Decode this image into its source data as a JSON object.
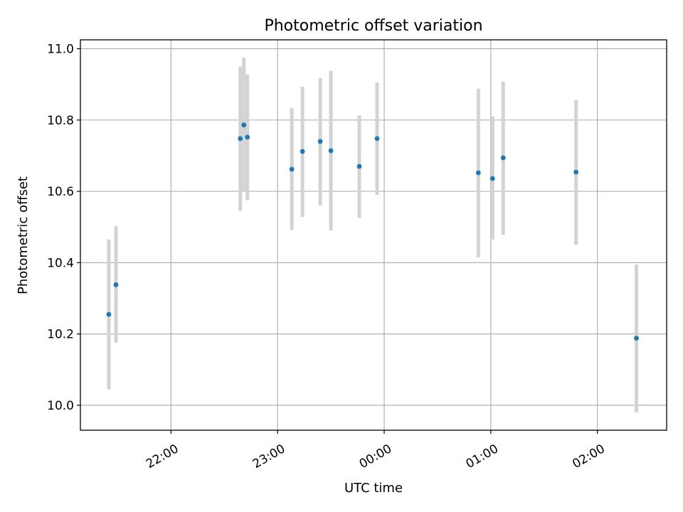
{
  "chart_data": {
    "type": "scatter",
    "title": "Photometric offset variation",
    "xlabel": "UTC time",
    "ylabel": "Photometric offset",
    "x_unit": "UTC time (hh:mm), times after midnight belong to the next day",
    "xlim": [
      "21:09",
      "02:39"
    ],
    "ylim": [
      9.93,
      11.025
    ],
    "x_ticks": [
      "22:00",
      "23:00",
      "00:00",
      "01:00",
      "02:00"
    ],
    "y_ticks": [
      "10.0",
      "10.2",
      "10.4",
      "10.6",
      "10.8",
      "11.0"
    ],
    "grid": true,
    "colors": {
      "point": "#1f77b4",
      "errorbar": "#d3d3d3"
    },
    "series": [
      {
        "points": [
          {
            "x": "21:25",
            "y": 10.255,
            "ylow": 10.045,
            "yhigh": 10.465
          },
          {
            "x": "21:29",
            "y": 10.338,
            "ylow": 10.175,
            "yhigh": 10.502
          },
          {
            "x": "22:39",
            "y": 10.748,
            "ylow": 10.545,
            "yhigh": 10.95
          },
          {
            "x": "22:41",
            "y": 10.786,
            "ylow": 10.598,
            "yhigh": 10.975
          },
          {
            "x": "22:43",
            "y": 10.752,
            "ylow": 10.575,
            "yhigh": 10.928
          },
          {
            "x": "23:08",
            "y": 10.662,
            "ylow": 10.492,
            "yhigh": 10.833
          },
          {
            "x": "23:14",
            "y": 10.712,
            "ylow": 10.528,
            "yhigh": 10.893
          },
          {
            "x": "23:24",
            "y": 10.74,
            "ylow": 10.56,
            "yhigh": 10.918
          },
          {
            "x": "23:30",
            "y": 10.714,
            "ylow": 10.49,
            "yhigh": 10.938
          },
          {
            "x": "23:46",
            "y": 10.67,
            "ylow": 10.525,
            "yhigh": 10.813
          },
          {
            "x": "23:56",
            "y": 10.748,
            "ylow": 10.59,
            "yhigh": 10.905
          },
          {
            "x": "00:53",
            "y": 10.652,
            "ylow": 10.415,
            "yhigh": 10.888
          },
          {
            "x": "01:01",
            "y": 10.636,
            "ylow": 10.465,
            "yhigh": 10.81
          },
          {
            "x": "01:07",
            "y": 10.694,
            "ylow": 10.478,
            "yhigh": 10.908
          },
          {
            "x": "01:48",
            "y": 10.654,
            "ylow": 10.45,
            "yhigh": 10.856
          },
          {
            "x": "02:22",
            "y": 10.188,
            "ylow": 9.98,
            "yhigh": 10.395
          }
        ]
      }
    ]
  }
}
